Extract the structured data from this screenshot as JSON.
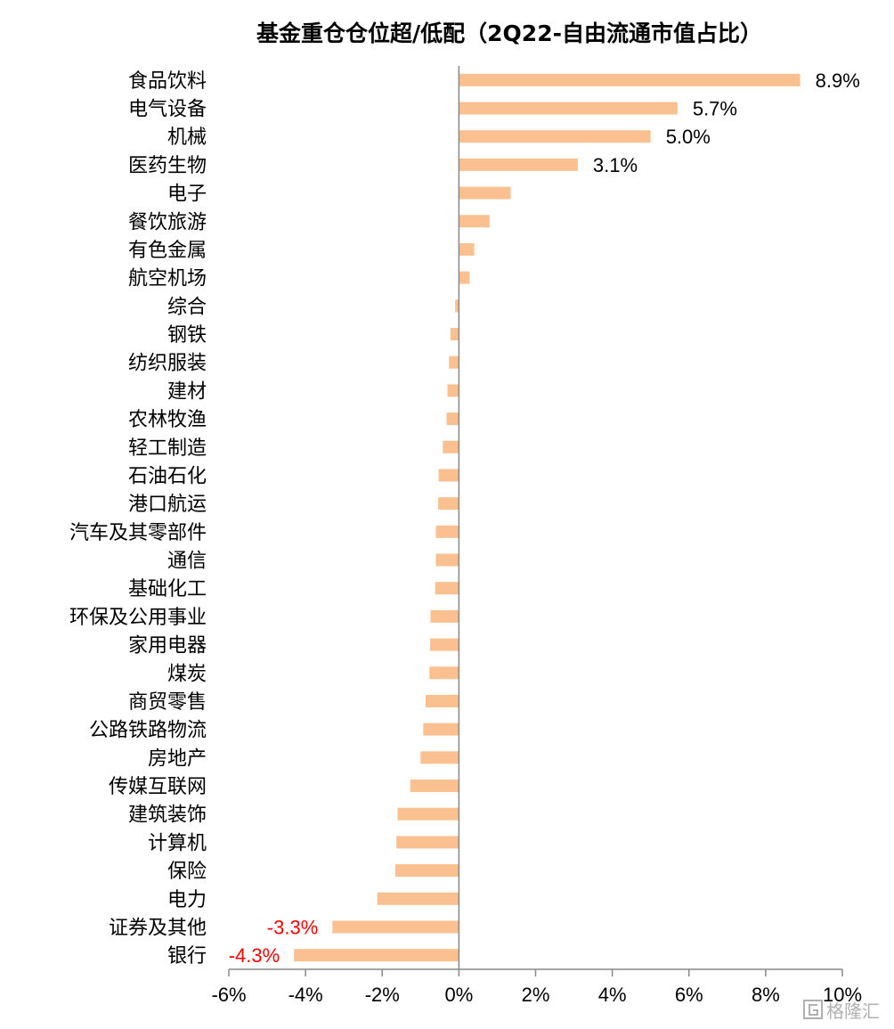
{
  "chart_data": {
    "type": "bar",
    "orientation": "horizontal",
    "title": "基金重仓仓位超/低配（2Q22-自由流通市值占比）",
    "xlabel": "",
    "ylabel": "",
    "xlim": [
      -6,
      10
    ],
    "x_ticks": [
      -6,
      -4,
      -2,
      0,
      2,
      4,
      6,
      8,
      10
    ],
    "x_tick_labels": [
      "-6%",
      "-4%",
      "-2%",
      "0%",
      "2%",
      "4%",
      "6%",
      "8%",
      "10%"
    ],
    "grid": false,
    "legend": "none",
    "bar_color": "#FAC090",
    "positive_label_color": "#000000",
    "negative_label_color": "#FF0000",
    "categories": [
      "食品饮料",
      "电气设备",
      "机械",
      "医药生物",
      "电子",
      "餐饮旅游",
      "有色金属",
      "航空机场",
      "综合",
      "钢铁",
      "纺织服装",
      "建材",
      "农林牧渔",
      "轻工制造",
      "石油石化",
      "港口航运",
      "汽车及其零部件",
      "通信",
      "基础化工",
      "环保及公用事业",
      "家用电器",
      "煤炭",
      "商贸零售",
      "公路铁路物流",
      "房地产",
      "传媒互联网",
      "建筑装饰",
      "计算机",
      "保险",
      "电力",
      "证券及其他",
      "银行"
    ],
    "values": [
      8.9,
      5.7,
      5.0,
      3.1,
      1.35,
      0.8,
      0.4,
      0.28,
      -0.1,
      -0.22,
      -0.26,
      -0.3,
      -0.32,
      -0.42,
      -0.53,
      -0.54,
      -0.6,
      -0.6,
      -0.62,
      -0.74,
      -0.75,
      -0.77,
      -0.87,
      -0.93,
      -1.0,
      -1.27,
      -1.6,
      -1.63,
      -1.66,
      -2.13,
      -3.3,
      -4.3
    ],
    "data_labels": [
      "8.9%",
      "5.7%",
      "5.0%",
      "3.1%",
      "",
      "",
      "",
      "",
      "",
      "",
      "",
      "",
      "",
      "",
      "",
      "",
      "",
      "",
      "",
      "",
      "",
      "",
      "",
      "",
      "",
      "",
      "",
      "",
      "",
      "",
      "-3.3%",
      "-4.3%"
    ]
  },
  "watermark": {
    "text": "格隆汇",
    "icon": "g-logo-icon"
  }
}
